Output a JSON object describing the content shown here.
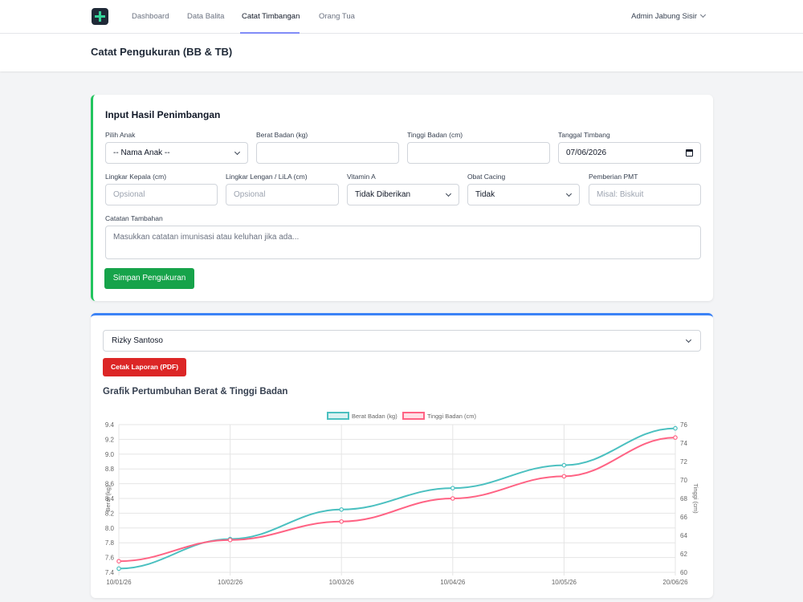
{
  "nav": {
    "links": [
      "Dashboard",
      "Data Balita",
      "Catat Timbangan",
      "Orang Tua"
    ],
    "active": "Catat Timbangan",
    "user": "Admin Jabung Sisir"
  },
  "header": {
    "title": "Catat Pengukuran (BB & TB)"
  },
  "form": {
    "title": "Input Hasil Penimbangan",
    "pilih_anak": {
      "label": "Pilih Anak",
      "value": "-- Nama Anak --"
    },
    "berat": {
      "label": "Berat Badan (kg)",
      "value": ""
    },
    "tinggi": {
      "label": "Tinggi Badan (cm)",
      "value": ""
    },
    "tanggal": {
      "label": "Tanggal Timbang",
      "value": "07/06/2026"
    },
    "lingkar_kepala": {
      "label": "Lingkar Kepala (cm)",
      "placeholder": "Opsional"
    },
    "lingkar_lengan": {
      "label": "Lingkar Lengan / LiLA (cm)",
      "placeholder": "Opsional"
    },
    "vitamin_a": {
      "label": "Vitamin A",
      "value": "Tidak Diberikan"
    },
    "obat_cacing": {
      "label": "Obat Cacing",
      "value": "Tidak"
    },
    "pmt": {
      "label": "Pemberian PMT",
      "placeholder": "Misal: Biskuit"
    },
    "catatan": {
      "label": "Catatan Tambahan",
      "placeholder": "Masukkan catatan imunisasi atau keluhan jika ada..."
    },
    "save_label": "Simpan Pengukuran"
  },
  "report": {
    "child": "Rizky Santoso",
    "pdf_label": "Cetak Laporan (PDF)",
    "chart_title": "Grafik Pertumbuhan Berat & Tinggi Badan"
  },
  "colors": {
    "berat": "#4bc0c0",
    "tinggi": "#ff6384",
    "save": "#16a34a",
    "pdf": "#dc2626",
    "accent": "#3b82f6"
  },
  "chart_data": {
    "type": "line",
    "title": "",
    "categories": [
      "10/01/26",
      "10/02/26",
      "10/03/26",
      "10/04/26",
      "10/05/26",
      "20/06/26"
    ],
    "series": [
      {
        "name": "Berat Badan (kg)",
        "axis": "left",
        "values": [
          7.45,
          7.85,
          8.25,
          8.54,
          8.85,
          9.35
        ]
      },
      {
        "name": "Tinggi Badan (cm)",
        "axis": "right",
        "values": [
          61.2,
          63.5,
          65.5,
          68.0,
          70.4,
          74.6
        ]
      }
    ],
    "ylabel": "Berat (kg)",
    "y2label": "Tinggi (cm)",
    "ylim": [
      7.4,
      9.4
    ],
    "y2lim": [
      60,
      76
    ],
    "yticks": [
      "9.4",
      "9.2",
      "9.0",
      "8.8",
      "8.6",
      "8.4",
      "8.2",
      "8.0",
      "7.8",
      "7.6",
      "7.4"
    ],
    "y2ticks": [
      "76",
      "74",
      "72",
      "70",
      "68",
      "66",
      "64",
      "62",
      "60"
    ],
    "legend": "top-center",
    "grid": true
  }
}
